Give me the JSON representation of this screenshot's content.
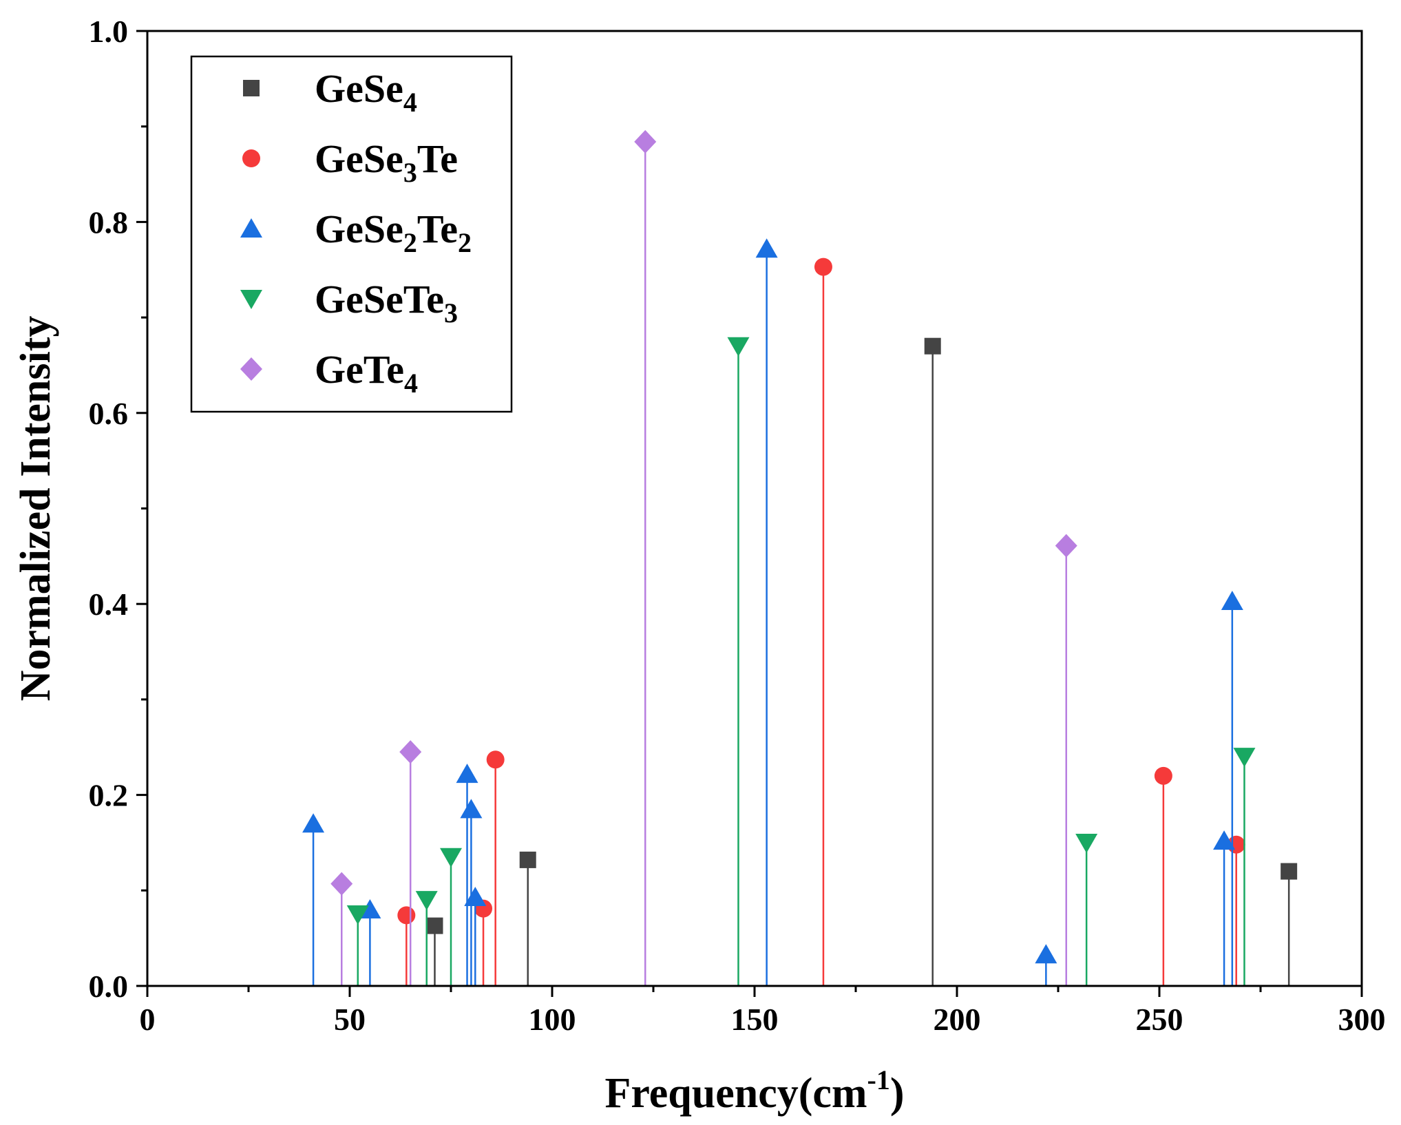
{
  "chart_data": {
    "type": "stem",
    "title": "",
    "xlabel": "Frequency(cm",
    "xlabel_sup": "-1",
    "xlabel_end": ")",
    "ylabel": "Normalized Intensity",
    "xlim": [
      0,
      300
    ],
    "ylim": [
      0,
      1.0
    ],
    "x_ticks": [
      0,
      50,
      100,
      150,
      200,
      250,
      300
    ],
    "x_tick_labels": [
      "0",
      "50",
      "100",
      "150",
      "200",
      "250",
      "300"
    ],
    "y_ticks": [
      0,
      0.2,
      0.4,
      0.6,
      0.8,
      1.0
    ],
    "y_tick_labels": [
      "0.0",
      "0.2",
      "0.4",
      "0.6",
      "0.8",
      "1.0"
    ],
    "legend_position": "top-left",
    "series": [
      {
        "name": "GeSe4",
        "label_base": "GeSe",
        "label_parts": [
          {
            "t": "GeSe"
          },
          {
            "t": "4",
            "sub": true
          }
        ],
        "color": "#444444",
        "marker": "square",
        "x": [
          71,
          94,
          194,
          282
        ],
        "y": [
          0.063,
          0.132,
          0.67,
          0.12
        ]
      },
      {
        "name": "GeSe3Te",
        "label_parts": [
          {
            "t": "GeSe"
          },
          {
            "t": "3",
            "sub": true
          },
          {
            "t": "Te"
          }
        ],
        "color": "#f53a3a",
        "marker": "circle",
        "x": [
          64,
          83,
          86,
          167,
          251,
          269
        ],
        "y": [
          0.074,
          0.081,
          0.237,
          0.753,
          0.22,
          0.148
        ]
      },
      {
        "name": "GeSe2Te2",
        "label_parts": [
          {
            "t": "GeSe"
          },
          {
            "t": "2",
            "sub": true
          },
          {
            "t": "Te"
          },
          {
            "t": "2",
            "sub": true
          }
        ],
        "color": "#1a6fe0",
        "marker": "triangle-up",
        "x": [
          41,
          55,
          79,
          80,
          81,
          153,
          222,
          266,
          268
        ],
        "y": [
          0.17,
          0.08,
          0.222,
          0.185,
          0.093,
          0.772,
          0.033,
          0.152,
          0.403
        ]
      },
      {
        "name": "GeSeTe3",
        "label_parts": [
          {
            "t": "GeSeTe"
          },
          {
            "t": "3",
            "sub": true
          }
        ],
        "color": "#19a862",
        "marker": "triangle-down",
        "x": [
          52,
          69,
          75,
          146,
          232,
          271
        ],
        "y": [
          0.075,
          0.09,
          0.135,
          0.67,
          0.15,
          0.24
        ]
      },
      {
        "name": "GeTe4",
        "label_parts": [
          {
            "t": "GeTe"
          },
          {
            "t": "4",
            "sub": true
          }
        ],
        "color": "#b87ee0",
        "marker": "diamond",
        "x": [
          48,
          65,
          123,
          227
        ],
        "y": [
          0.107,
          0.245,
          0.884,
          0.461
        ]
      }
    ]
  }
}
